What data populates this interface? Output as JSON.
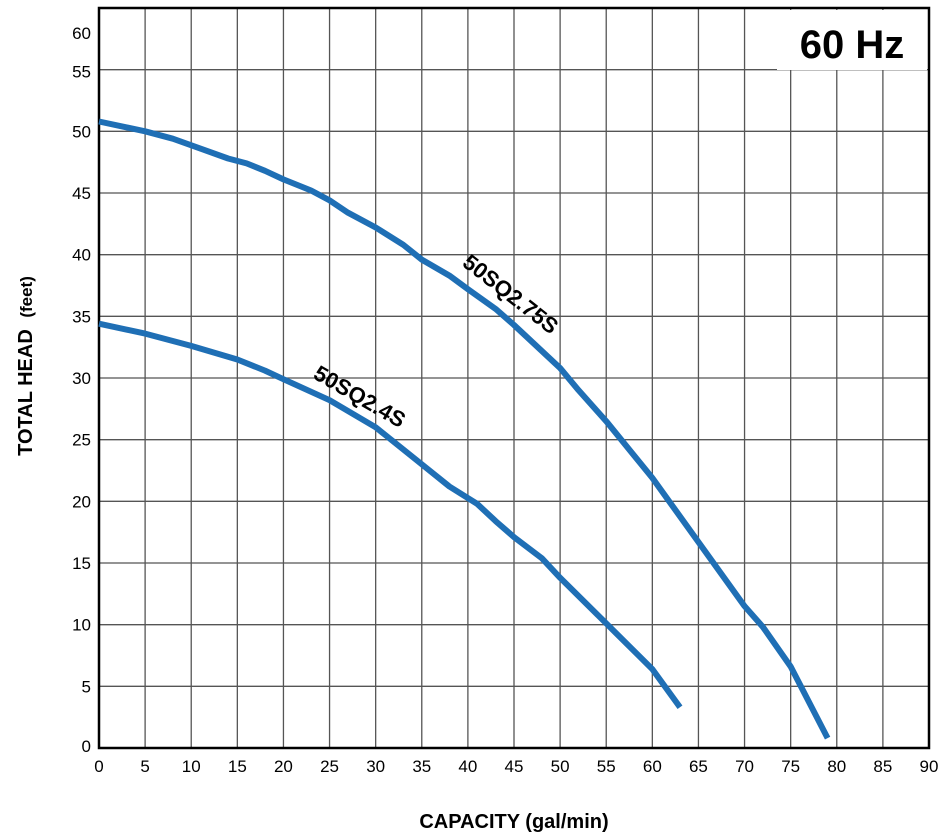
{
  "chart_data": {
    "type": "line",
    "title": "",
    "badge": "60 Hz",
    "xlabel": "CAPACITY (gal/min)",
    "ylabel_main": "TOTAL HEAD",
    "ylabel_unit": "(feet)",
    "xlim": [
      0,
      90
    ],
    "ylim": [
      0,
      60
    ],
    "x_ticks": [
      0,
      5,
      10,
      15,
      20,
      25,
      30,
      35,
      40,
      45,
      50,
      55,
      60,
      65,
      70,
      75,
      80,
      85,
      90
    ],
    "y_ticks": [
      0,
      5,
      10,
      15,
      20,
      25,
      30,
      35,
      40,
      45,
      50,
      55,
      60
    ],
    "grid": true,
    "line_color": "#1f6fb5",
    "series": [
      {
        "name": "50SQ2.75S",
        "x": [
          0,
          5,
          8,
          11,
          14,
          16,
          18,
          20,
          23,
          25,
          27,
          30,
          33,
          35,
          38,
          40,
          43,
          45,
          50,
          52,
          55,
          60,
          65,
          70,
          72,
          75,
          79
        ],
        "y": [
          50.8,
          50.0,
          49.4,
          48.6,
          47.8,
          47.4,
          46.8,
          46.1,
          45.2,
          44.4,
          43.4,
          42.2,
          40.8,
          39.6,
          38.3,
          37.2,
          35.6,
          34.3,
          30.8,
          29.0,
          26.5,
          21.9,
          16.7,
          11.5,
          9.8,
          6.6,
          0.8
        ]
      },
      {
        "name": "50SQ2.4S",
        "x": [
          0,
          5,
          10,
          15,
          18,
          20,
          25,
          30,
          35,
          38,
          41,
          43,
          45,
          48,
          50,
          55,
          60,
          63
        ],
        "y": [
          34.4,
          33.6,
          32.6,
          31.5,
          30.6,
          29.9,
          28.2,
          26.0,
          23.0,
          21.2,
          19.8,
          18.4,
          17.1,
          15.4,
          13.8,
          10.1,
          6.4,
          3.3
        ]
      }
    ]
  }
}
